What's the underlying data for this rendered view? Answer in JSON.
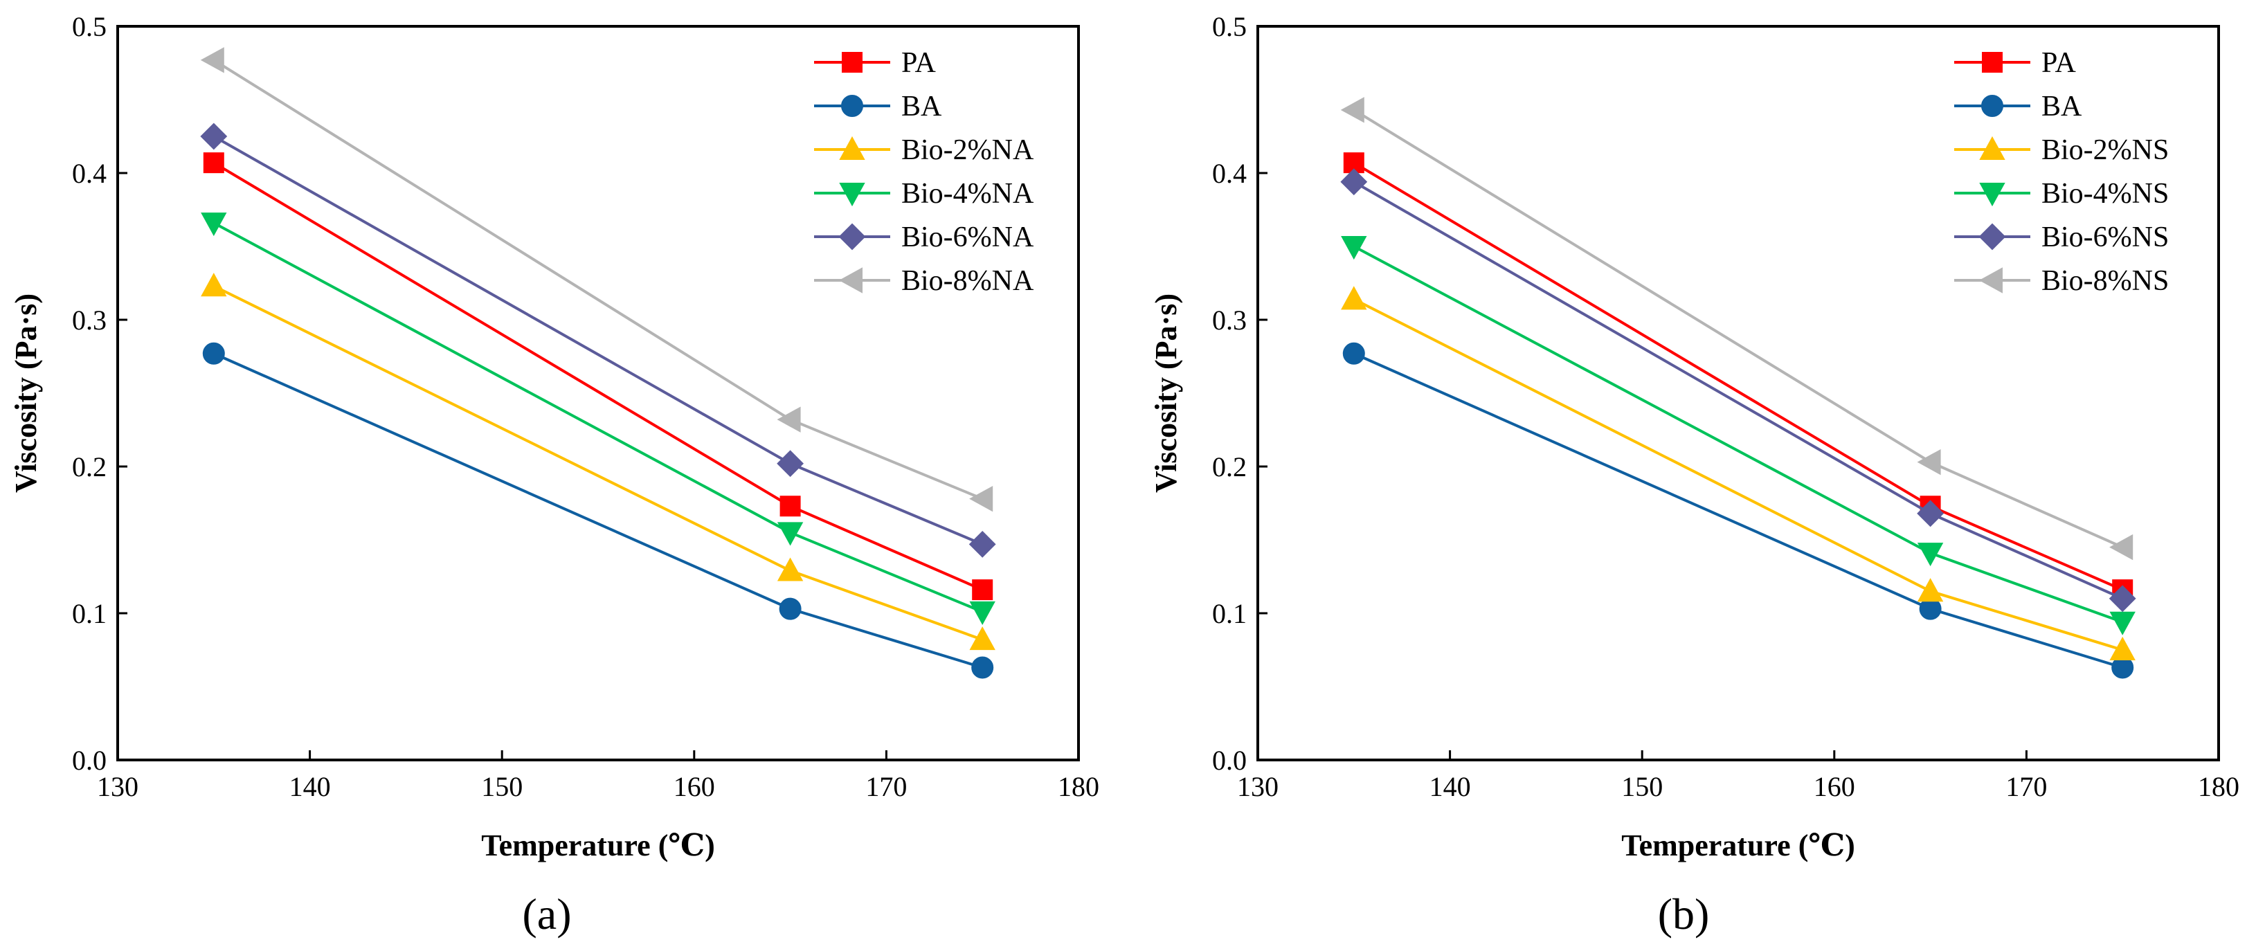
{
  "chart_data": [
    {
      "type": "line",
      "panel_label": "(a)",
      "xlabel": "Temperature (℃)",
      "ylabel": "Viscosity (Pa·s)",
      "xlim": [
        130,
        180
      ],
      "ylim": [
        0.0,
        0.5
      ],
      "xticks": [
        130,
        140,
        150,
        160,
        170,
        180
      ],
      "yticks": [
        "0.0",
        "0.1",
        "0.2",
        "0.3",
        "0.4",
        "0.5"
      ],
      "x": [
        135,
        165,
        175
      ],
      "legend_position": "top-right",
      "series": [
        {
          "name": "PA",
          "color": "#ff0000",
          "marker": "square",
          "values": [
            0.407,
            0.173,
            0.116
          ]
        },
        {
          "name": "BA",
          "color": "#0f5fa0",
          "marker": "circle",
          "values": [
            0.277,
            0.103,
            0.063
          ]
        },
        {
          "name": "Bio-2%NA",
          "color": "#ffc000",
          "marker": "triangle-up",
          "values": [
            0.323,
            0.129,
            0.082
          ]
        },
        {
          "name": "Bio-4%NA",
          "color": "#00c25a",
          "marker": "triangle-down",
          "values": [
            0.366,
            0.155,
            0.101
          ]
        },
        {
          "name": "Bio-6%NA",
          "color": "#5b5b9a",
          "marker": "diamond",
          "values": [
            0.425,
            0.202,
            0.147
          ]
        },
        {
          "name": "Bio-8%NA",
          "color": "#b4b4b4",
          "marker": "triangle-left",
          "values": [
            0.477,
            0.232,
            0.178
          ]
        }
      ]
    },
    {
      "type": "line",
      "panel_label": "(b)",
      "xlabel": "Temperature (℃)",
      "ylabel": "Viscosity (Pa·s)",
      "xlim": [
        130,
        180
      ],
      "ylim": [
        0.0,
        0.5
      ],
      "xticks": [
        130,
        140,
        150,
        160,
        170,
        180
      ],
      "yticks": [
        "0.0",
        "0.1",
        "0.2",
        "0.3",
        "0.4",
        "0.5"
      ],
      "x": [
        135,
        165,
        175
      ],
      "legend_position": "top-right",
      "series": [
        {
          "name": "PA",
          "color": "#ff0000",
          "marker": "square",
          "values": [
            0.407,
            0.173,
            0.116
          ]
        },
        {
          "name": "BA",
          "color": "#0f5fa0",
          "marker": "circle",
          "values": [
            0.277,
            0.103,
            0.063
          ]
        },
        {
          "name": "Bio-2%NS",
          "color": "#ffc000",
          "marker": "triangle-up",
          "values": [
            0.314,
            0.115,
            0.075
          ]
        },
        {
          "name": "Bio-4%NS",
          "color": "#00c25a",
          "marker": "triangle-down",
          "values": [
            0.35,
            0.141,
            0.094
          ]
        },
        {
          "name": "Bio-6%NS",
          "color": "#5b5b9a",
          "marker": "diamond",
          "values": [
            0.394,
            0.168,
            0.11
          ]
        },
        {
          "name": "Bio-8%NS",
          "color": "#b4b4b4",
          "marker": "triangle-left",
          "values": [
            0.443,
            0.203,
            0.145
          ]
        }
      ]
    }
  ]
}
